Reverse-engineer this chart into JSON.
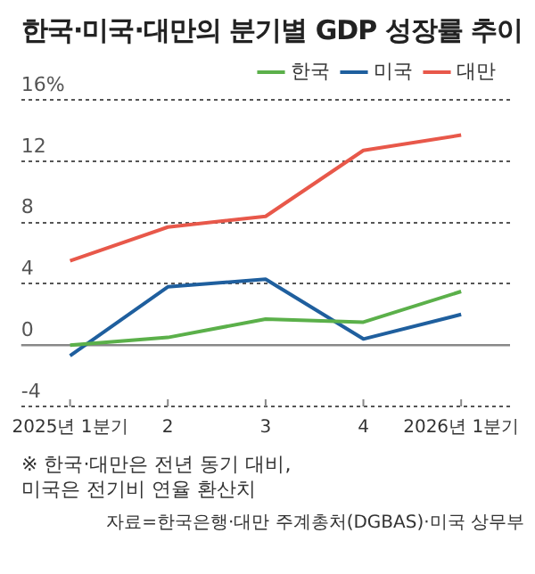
{
  "chart_data": {
    "type": "line",
    "title": "한국·미국·대만의 분기별 GDP 성장률 추이",
    "categories": [
      "2025년 1분기",
      "2",
      "3",
      "4",
      "2026년 1분기"
    ],
    "series": [
      {
        "name": "한국",
        "color": "#5bb04a",
        "values": [
          0.0,
          0.5,
          1.7,
          1.5,
          3.5
        ]
      },
      {
        "name": "미국",
        "color": "#1f5f9e",
        "values": [
          -0.7,
          3.8,
          4.3,
          0.4,
          2.0
        ]
      },
      {
        "name": "대만",
        "color": "#e8584a",
        "values": [
          5.5,
          7.7,
          8.4,
          12.7,
          13.7
        ]
      }
    ],
    "ylim": [
      -4,
      16
    ],
    "yticks": [
      -4,
      0,
      4,
      8,
      12,
      {
        "value": 16,
        "label": "16%"
      }
    ],
    "grid": "y",
    "legend": "top right",
    "marker": "none",
    "line_style": "solid",
    "ref_lines": [
      {
        "axis": "y",
        "value": 0,
        "color": "#888888"
      }
    ],
    "annotations": [
      "※ 한국·대만은 전년 동기 대비,\n미국은 전기비 연율 환산치",
      "자료=한국은행·대만 주계총처(DGBAS)·미국 상무부"
    ]
  }
}
